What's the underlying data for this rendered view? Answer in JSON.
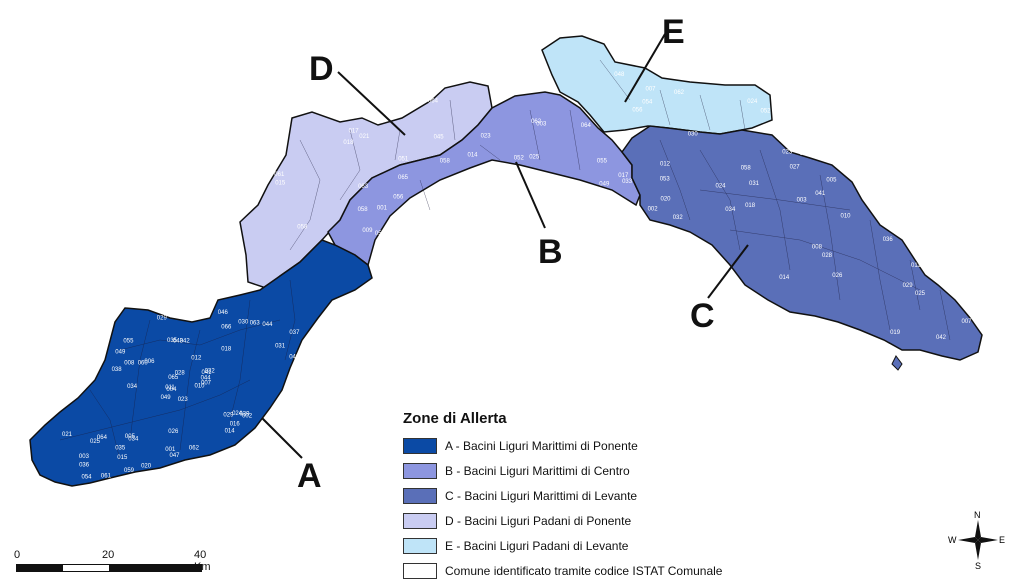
{
  "legend": {
    "title": "Zone di Allerta",
    "items": [
      {
        "label": "A - Bacini Liguri Marittimi di Ponente",
        "color": "#0b4aa5"
      },
      {
        "label": "B - Bacini Liguri Marittimi di Centro",
        "color": "#8d96e0"
      },
      {
        "label": "C - Bacini Liguri Marittimi di Levante",
        "color": "#5a6fb8"
      },
      {
        "label": "D - Bacini Liguri Padani di Ponente",
        "color": "#c9ccf2"
      },
      {
        "label": "E - Bacini Liguri Padani di Levante",
        "color": "#bfe4f8"
      },
      {
        "label": "Comune identificato tramite codice ISTAT Comunale",
        "color": "#ffffff"
      }
    ]
  },
  "zones": {
    "A": {
      "letter": "A",
      "color": "#0b4aa5"
    },
    "B": {
      "letter": "B",
      "color": "#8d96e0"
    },
    "C": {
      "letter": "C",
      "color": "#5a6fb8"
    },
    "D": {
      "letter": "D",
      "color": "#c9ccf2"
    },
    "E": {
      "letter": "E",
      "color": "#bfe4f8"
    }
  },
  "codes": {
    "A": [
      "023",
      "004",
      "003",
      "041",
      "034",
      "046",
      "042",
      "066",
      "010",
      "037",
      "049",
      "018",
      "061",
      "035",
      "012",
      "064",
      "006",
      "036",
      "015",
      "043",
      "032",
      "002",
      "029",
      "040",
      "011",
      "001",
      "065",
      "055",
      "030",
      "005",
      "039",
      "060",
      "038",
      "014",
      "059",
      "044",
      "054",
      "047",
      "007",
      "025",
      "031",
      "016",
      "035",
      "062",
      "044",
      "034",
      "049",
      "063",
      "029",
      "028",
      "021",
      "026",
      "020",
      "024",
      "008"
    ],
    "B": [
      "009",
      "014",
      "058",
      "055",
      "033",
      "025",
      "062",
      "003",
      "065",
      "017",
      "056",
      "052",
      "064",
      "058",
      "049",
      "023",
      "058",
      "001"
    ],
    "C": [
      "041",
      "031",
      "036",
      "042",
      "053",
      "034",
      "058",
      "029",
      "018",
      "028",
      "032",
      "025",
      "008",
      "010",
      "012",
      "019",
      "023",
      "024",
      "002",
      "011",
      "027",
      "003",
      "005",
      "026",
      "013",
      "020",
      "014",
      "007",
      "030"
    ],
    "D": [
      "051",
      "063",
      "021",
      "045",
      "015",
      "017",
      "058",
      "061",
      "064",
      "018"
    ],
    "E": [
      "007",
      "054",
      "052",
      "048",
      "024",
      "056",
      "062"
    ]
  },
  "scale": {
    "labels": [
      "0",
      "20",
      "40 Km"
    ]
  },
  "compass": {
    "n": "N",
    "s": "S",
    "e": "E",
    "w": "W"
  }
}
